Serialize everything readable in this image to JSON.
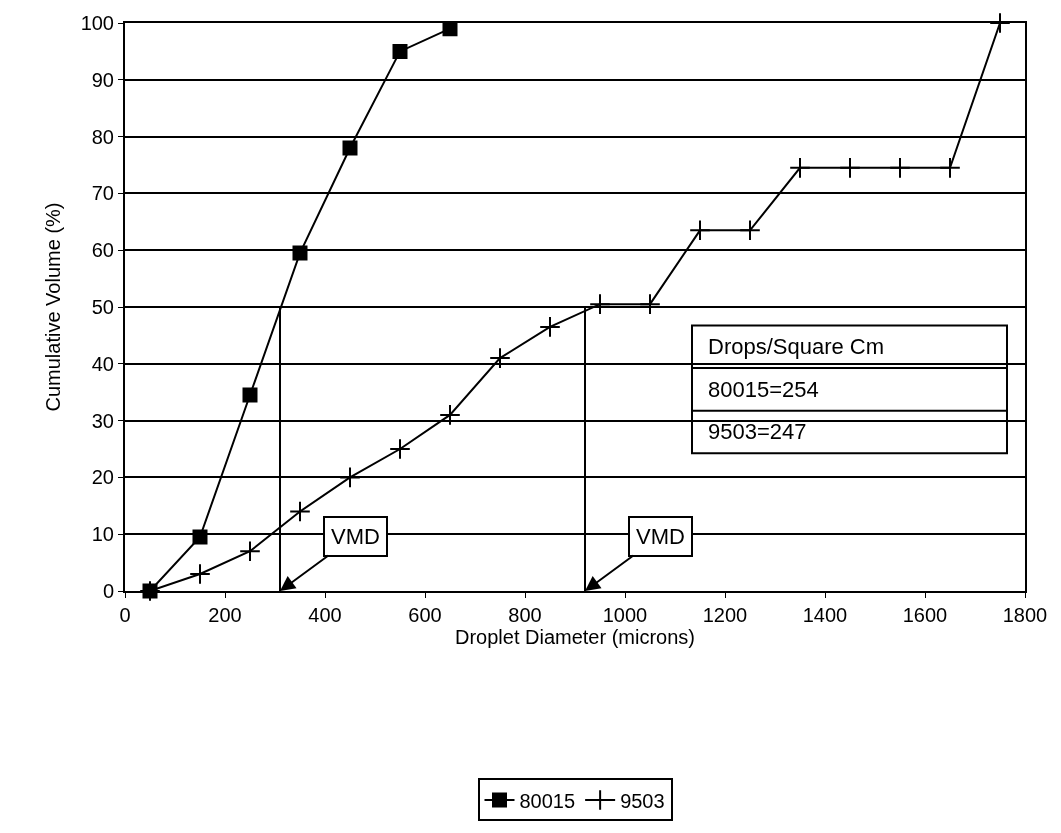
{
  "chart_data": {
    "type": "line",
    "xlabel": "Droplet Diameter (microns)",
    "ylabel": "Cumulative Volume (%)",
    "xlim": [
      0,
      1800
    ],
    "xticks": [
      0,
      200,
      400,
      600,
      800,
      1000,
      1200,
      1400,
      1600,
      1800
    ],
    "ylim": [
      0,
      100
    ],
    "yticks": [
      0,
      10,
      20,
      30,
      40,
      50,
      60,
      70,
      80,
      90,
      100
    ],
    "grid": "y",
    "legend": "bottom",
    "series": [
      {
        "name": "80015",
        "color": "#000000",
        "marker": "square",
        "x": [
          50,
          150,
          250,
          350,
          450,
          550,
          650
        ],
        "values": [
          0,
          9.5,
          34.5,
          59.5,
          78,
          95,
          99
        ]
      },
      {
        "name": "9503",
        "color": "#000000",
        "marker": "cross",
        "x": [
          50,
          150,
          250,
          350,
          450,
          550,
          650,
          750,
          850,
          950,
          1050,
          1150,
          1250,
          1350,
          1450,
          1550,
          1650,
          1750
        ],
        "values": [
          0,
          3,
          7,
          14,
          20,
          25,
          31,
          41,
          46.5,
          50.5,
          50.5,
          63.5,
          63.5,
          74.5,
          74.5,
          74.5,
          74.5,
          100
        ]
      },
      {
        "color": "#000000",
        "marker": "none",
        "x": [
          310,
          310
        ],
        "values": [
          0,
          50
        ]
      },
      {
        "color": "#000000",
        "marker": "none",
        "x": [
          920,
          920
        ],
        "values": [
          0,
          50
        ]
      }
    ],
    "annotations": [
      {
        "text": "VMD",
        "x": 310,
        "y": 0
      },
      {
        "text": "VMD",
        "x": 920,
        "y": 0
      },
      "Drops/Square Cm",
      "80015=254",
      "9503=247"
    ]
  }
}
